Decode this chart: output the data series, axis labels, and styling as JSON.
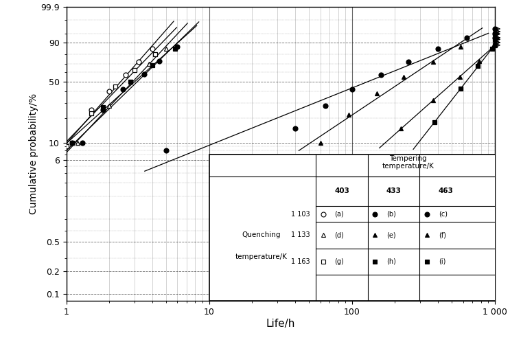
{
  "xlabel": "Life/h",
  "ylabel": "Cumulative probability/%",
  "ytick_probs": [
    0.1,
    0.2,
    0.5,
    6,
    10,
    50,
    90,
    99.9
  ],
  "ytick_labels": [
    "0.1",
    "0.2",
    "0.5",
    "6",
    "10",
    "50",
    "90",
    "99.9"
  ],
  "yminor_probs": [
    0.3,
    0.7,
    1,
    2,
    3,
    4,
    5,
    7,
    8,
    9,
    20,
    30,
    40,
    60,
    70,
    80,
    95,
    99
  ],
  "x_minor": [
    2,
    3,
    4,
    5,
    6,
    7,
    8,
    9,
    20,
    30,
    40,
    50,
    60,
    70,
    80,
    90,
    200,
    300,
    400,
    500,
    600,
    700,
    800,
    900
  ],
  "series": [
    {
      "key": "a",
      "marker": "o",
      "mfc": "white",
      "mec": "black",
      "x": [
        1.1,
        1.5,
        2.0,
        2.6,
        3.2,
        4.0
      ],
      "p": [
        10,
        25,
        40,
        57,
        72,
        85
      ]
    },
    {
      "key": "b",
      "marker": "o",
      "mfc": "black",
      "mec": "black",
      "x": [
        1.3,
        1.8,
        2.5,
        3.5,
        4.5,
        6.0
      ],
      "p": [
        10,
        25,
        42,
        58,
        73,
        87
      ]
    },
    {
      "key": "c",
      "marker": "o",
      "mfc": "black",
      "mec": "black",
      "x": [
        5,
        40,
        65,
        100,
        160,
        250,
        400,
        640
      ],
      "p": [
        8,
        15,
        28,
        42,
        57,
        72,
        85,
        93
      ]
    },
    {
      "key": "d",
      "marker": "^",
      "mfc": "white",
      "mec": "black",
      "x": [
        1.2,
        2.0,
        2.8,
        3.8,
        5.0
      ],
      "p": [
        10,
        28,
        50,
        70,
        85
      ]
    },
    {
      "key": "e",
      "marker": "^",
      "mfc": "black",
      "mec": "black",
      "x": [
        60,
        95,
        150,
        230,
        370,
        580
      ],
      "p": [
        10,
        22,
        38,
        55,
        72,
        87
      ]
    },
    {
      "key": "f",
      "marker": "^",
      "mfc": "black",
      "mec": "black",
      "x": [
        220,
        370,
        570,
        780,
        980
      ],
      "p": [
        15,
        32,
        55,
        73,
        88
      ]
    },
    {
      "key": "g",
      "marker": "s",
      "mfc": "white",
      "mec": "black",
      "x": [
        1.0,
        1.5,
        2.2,
        3.0,
        4.2
      ],
      "p": [
        9,
        23,
        45,
        63,
        80
      ]
    },
    {
      "key": "h",
      "marker": "s",
      "mfc": "black",
      "mec": "black",
      "x": [
        1.1,
        1.8,
        2.8,
        4.0,
        5.8
      ],
      "p": [
        10,
        27,
        50,
        68,
        85
      ]
    },
    {
      "key": "i",
      "marker": "s",
      "mfc": "black",
      "mec": "black",
      "x": [
        380,
        580,
        760,
        960
      ],
      "p": [
        18,
        43,
        67,
        85
      ]
    }
  ],
  "right_censored": {
    "c": [
      93,
      95,
      97
    ],
    "e": [
      90,
      93,
      96
    ],
    "f": [
      90,
      93,
      96
    ],
    "i": [
      88,
      92,
      95
    ]
  },
  "legend": {
    "temper_header": [
      "Tempering",
      "temperature/K"
    ],
    "temper_cols": [
      "403",
      "433",
      "463"
    ],
    "quench_header": [
      "Quenching",
      "temperature/K"
    ],
    "quench_rows": [
      "1 103",
      "1 133",
      "1 163"
    ],
    "markers": [
      "o",
      "^",
      "s"
    ],
    "mfc_rows": [
      [
        "white",
        "black",
        "black"
      ],
      [
        "white",
        "black",
        "black"
      ],
      [
        "white",
        "black",
        "black"
      ]
    ],
    "letters": [
      [
        "(a)",
        "(b)",
        "(c)"
      ],
      [
        "(d)",
        "(e)",
        "(f)"
      ],
      [
        "(g)",
        "(h)",
        "(i)"
      ]
    ]
  }
}
